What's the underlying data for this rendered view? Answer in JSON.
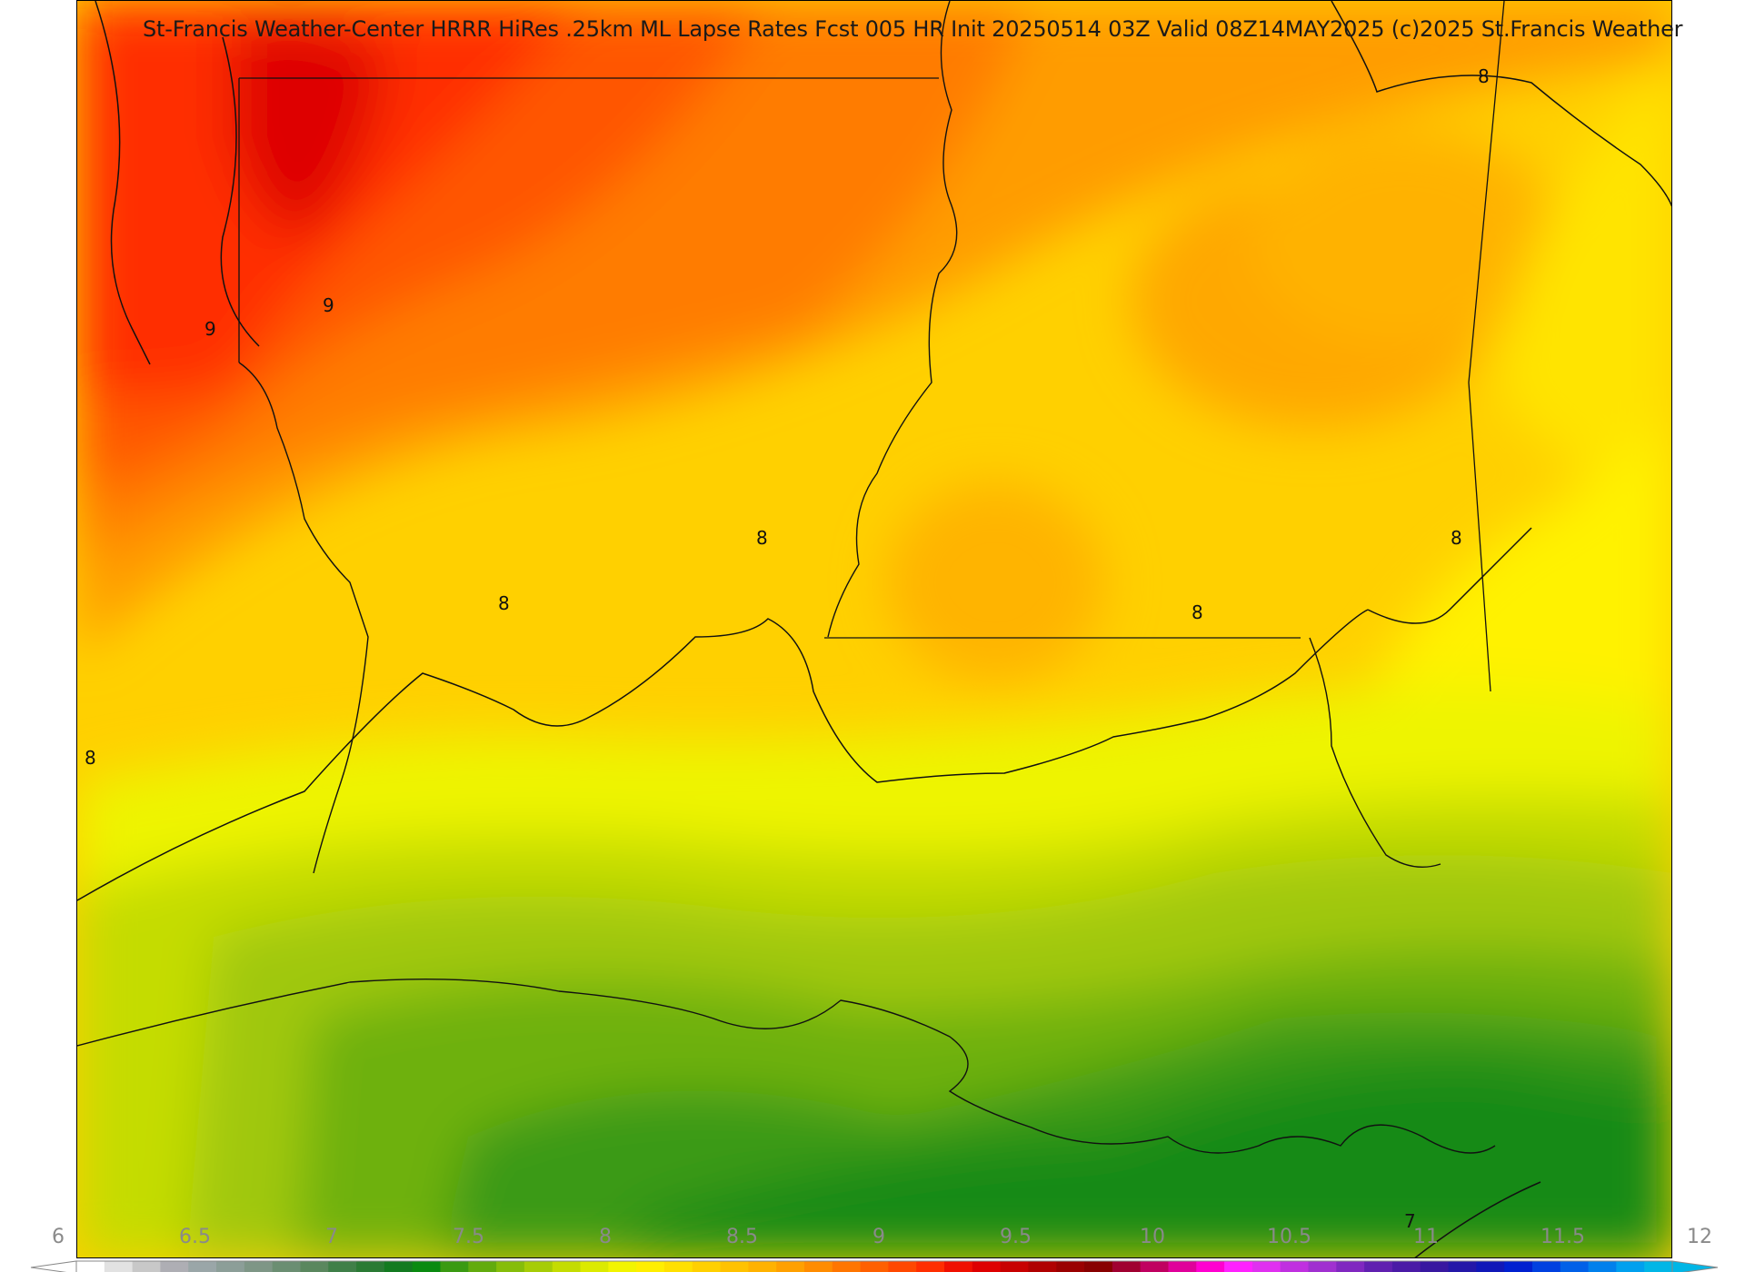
{
  "title": "St-Francis Weather-Center HRRR HiRes .25km ML Lapse Rates  Fcst 005 HR Init 20250514 03Z  Valid 08Z14MAY2025   (c)2025 St.Francis Weather",
  "contour_labels": [
    "9",
    "9",
    "8",
    "8",
    "8",
    "8",
    "8",
    "8",
    "7"
  ],
  "colorbar": {
    "ticks": [
      "6",
      "6.5",
      "7",
      "7.5",
      "8",
      "8.5",
      "9",
      "9.5",
      "10",
      "10.5",
      "11",
      "11.5",
      "12"
    ],
    "colors": [
      "#ffffff",
      "#e2e2e2",
      "#c8c8c8",
      "#aeaeb4",
      "#9aa6a8",
      "#8c9e98",
      "#7e9686",
      "#6b8e72",
      "#5a875e",
      "#3f7f48",
      "#2a7a34",
      "#137a20",
      "#0a8a10",
      "#3a9a12",
      "#62ab0e",
      "#86bd0a",
      "#a6cc06",
      "#c4dc02",
      "#dcea00",
      "#f2f400",
      "#ffee00",
      "#ffe000",
      "#ffd000",
      "#ffc200",
      "#ffb200",
      "#ffa000",
      "#ff8c00",
      "#ff7600",
      "#ff6000",
      "#ff4800",
      "#ff2e00",
      "#f01000",
      "#de0000",
      "#c80000",
      "#b00000",
      "#9a0000",
      "#880000",
      "#a00030",
      "#c00060",
      "#e0009a",
      "#ff00d0",
      "#ff22ff",
      "#e030f0",
      "#c030e0",
      "#a030d0",
      "#8028c0",
      "#6020b0",
      "#4a1aa6",
      "#3818a0",
      "#2418a8",
      "#1018b8",
      "#0020d0",
      "#0040e0",
      "#0060e8",
      "#0080ec",
      "#00a0ee",
      "#00b6e6"
    ],
    "low_extension_color": "#ffffff",
    "high_extension_color": "#00b6e6"
  }
}
